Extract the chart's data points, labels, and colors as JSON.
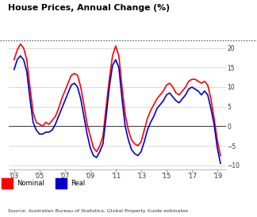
{
  "title": "House Prices, Annual Change (%)",
  "source": "Source: Australian Bureau of Statistics, Global Property Guide estimates",
  "legend": [
    "Nominal",
    "Real"
  ],
  "nominal_color": "#FF0000",
  "real_color": "#0000CC",
  "background_color": "#FFFFFF",
  "ylim": [
    -11,
    22
  ],
  "yticks": [
    -10,
    -5,
    0,
    5,
    10,
    15,
    20
  ],
  "xtick_labels": [
    "'03",
    "'05",
    "'07",
    "'09",
    "'11",
    "'13",
    "'15",
    "'17",
    "'19"
  ],
  "xtick_positions": [
    2003,
    2005,
    2007,
    2009,
    2011,
    2013,
    2015,
    2017,
    2019
  ],
  "nominal_x": [
    2003.0,
    2003.25,
    2003.5,
    2003.75,
    2004.0,
    2004.25,
    2004.5,
    2004.75,
    2005.0,
    2005.25,
    2005.5,
    2005.75,
    2006.0,
    2006.25,
    2006.5,
    2006.75,
    2007.0,
    2007.25,
    2007.5,
    2007.75,
    2008.0,
    2008.25,
    2008.5,
    2008.75,
    2009.0,
    2009.25,
    2009.5,
    2009.75,
    2010.0,
    2010.25,
    2010.5,
    2010.75,
    2011.0,
    2011.25,
    2011.5,
    2011.75,
    2012.0,
    2012.25,
    2012.5,
    2012.75,
    2013.0,
    2013.25,
    2013.5,
    2013.75,
    2014.0,
    2014.25,
    2014.5,
    2014.75,
    2015.0,
    2015.25,
    2015.5,
    2015.75,
    2016.0,
    2016.25,
    2016.5,
    2016.75,
    2017.0,
    2017.25,
    2017.5,
    2017.75,
    2018.0,
    2018.25,
    2018.5,
    2018.75,
    2019.0,
    2019.25
  ],
  "nominal_y": [
    17.0,
    19.5,
    21.0,
    20.0,
    17.0,
    10.0,
    3.5,
    1.0,
    0.5,
    0.0,
    1.0,
    0.5,
    1.5,
    2.5,
    4.5,
    7.0,
    9.0,
    11.0,
    13.0,
    13.5,
    13.0,
    10.0,
    5.5,
    0.5,
    -2.5,
    -5.5,
    -6.5,
    -5.0,
    -2.5,
    5.0,
    12.0,
    18.0,
    20.5,
    18.0,
    10.0,
    3.0,
    -1.0,
    -3.5,
    -4.5,
    -5.0,
    -4.0,
    -1.0,
    2.0,
    4.0,
    5.5,
    7.0,
    8.0,
    9.0,
    10.5,
    11.0,
    10.0,
    8.5,
    8.0,
    9.0,
    10.0,
    11.5,
    12.0,
    12.0,
    11.5,
    11.0,
    11.5,
    10.5,
    7.0,
    2.0,
    -3.5,
    -7.5
  ],
  "real_x": [
    2003.0,
    2003.25,
    2003.5,
    2003.75,
    2004.0,
    2004.25,
    2004.5,
    2004.75,
    2005.0,
    2005.25,
    2005.5,
    2005.75,
    2006.0,
    2006.25,
    2006.5,
    2006.75,
    2007.0,
    2007.25,
    2007.5,
    2007.75,
    2008.0,
    2008.25,
    2008.5,
    2008.75,
    2009.0,
    2009.25,
    2009.5,
    2009.75,
    2010.0,
    2010.25,
    2010.5,
    2010.75,
    2011.0,
    2011.25,
    2011.5,
    2011.75,
    2012.0,
    2012.25,
    2012.5,
    2012.75,
    2013.0,
    2013.25,
    2013.5,
    2013.75,
    2014.0,
    2014.25,
    2014.5,
    2014.75,
    2015.0,
    2015.25,
    2015.5,
    2015.75,
    2016.0,
    2016.25,
    2016.5,
    2016.75,
    2017.0,
    2017.25,
    2017.5,
    2017.75,
    2018.0,
    2018.25,
    2018.5,
    2018.75,
    2019.0,
    2019.25
  ],
  "real_y": [
    14.5,
    17.0,
    18.0,
    17.0,
    14.0,
    7.0,
    1.0,
    -1.0,
    -2.0,
    -2.0,
    -1.5,
    -1.5,
    -1.0,
    0.5,
    2.5,
    4.5,
    6.5,
    8.5,
    10.5,
    11.0,
    10.0,
    7.0,
    2.5,
    -2.0,
    -5.5,
    -7.5,
    -8.0,
    -6.5,
    -4.5,
    2.5,
    10.0,
    15.5,
    17.0,
    15.0,
    7.0,
    0.0,
    -3.5,
    -6.0,
    -7.0,
    -7.5,
    -6.5,
    -4.0,
    -1.0,
    1.0,
    2.5,
    4.5,
    5.5,
    6.5,
    8.0,
    8.5,
    7.5,
    6.5,
    6.0,
    7.0,
    8.0,
    9.5,
    10.0,
    9.5,
    9.0,
    8.0,
    9.0,
    8.0,
    4.5,
    0.5,
    -5.5,
    -9.5
  ]
}
